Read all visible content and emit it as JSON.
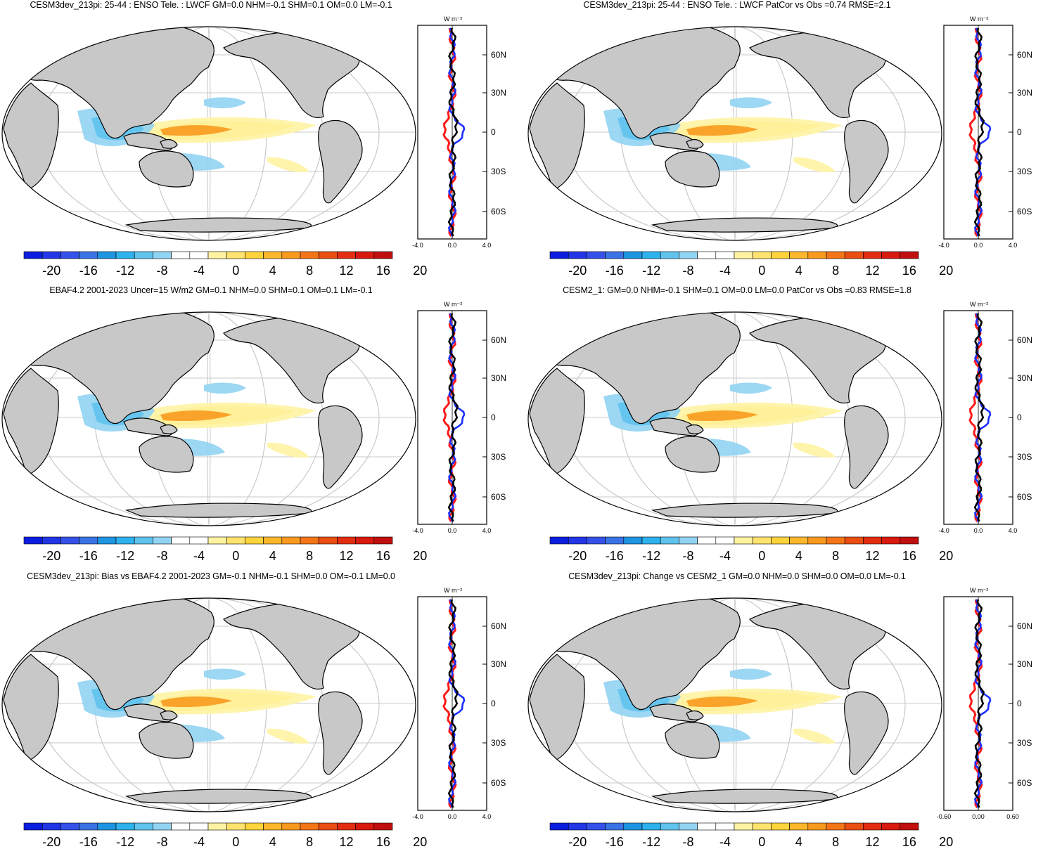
{
  "panels": [
    {
      "title": "CESM3dev_213pi: 25-44 : ENSO Tele. : LWCF GM=0.0 NHM=-0.1 SHM=0.1 OM=0.0 LM=-0.1",
      "zonal_xticks": [
        "-4.0",
        "0.0",
        "4.0"
      ]
    },
    {
      "title": "CESM3dev_213pi: 25-44 : ENSO Tele. : LWCF PatCor vs Obs =0.74 RMSE=2.1",
      "zonal_xticks": [
        "-4.0",
        "0.0",
        "4.0"
      ]
    },
    {
      "title": "EBAF4.2 2001-2023 Uncer=15 W/m2 GM=0.1 NHM=0.0 SHM=0.1 OM=0.1 LM=-0.1",
      "zonal_xticks": [
        "-4.0",
        "0.0",
        "4.0"
      ]
    },
    {
      "title": "CESM2_1: GM=0.0 NHM=-0.1 SHM=0.1 OM=0.0 LM=0.0 PatCor vs Obs =0.83 RMSE=1.8",
      "zonal_xticks": [
        "-4.0",
        "0.0",
        "4.0"
      ]
    },
    {
      "title": "CESM3dev_213pi: Bias vs EBAF4.2 2001-2023 GM=-0.1 NHM=-0.1 SHM=0.0 OM=-0.1 LM=0.0",
      "zonal_xticks": [
        "-4.0",
        "0.0",
        "4.0"
      ]
    },
    {
      "title": "CESM3dev_213pi: Change vs CESM2_1 GM=0.0 NHM=0.0 SHM=0.0 OM=0.0 LM=-0.1",
      "zonal_xticks": [
        "-0.60",
        "0.00",
        "0.60"
      ]
    }
  ],
  "zonal_unit": "W m⁻²",
  "zonal_lat_labels": [
    "60N",
    "30N",
    "0",
    "30S",
    "60S"
  ],
  "colorbar": {
    "labels": [
      "-20",
      "-16",
      "-12",
      "-8",
      "-4",
      "0",
      "4",
      "8",
      "12",
      "16",
      "20"
    ],
    "colors": [
      "#0b1ee0",
      "#2236e6",
      "#3551e9",
      "#3a73e6",
      "#1e95e2",
      "#2db2ee",
      "#5fc3ee",
      "#91d3f2",
      "#ffffff",
      "#ffffff",
      "#fff3a2",
      "#ffe36e",
      "#fed43c",
      "#fcb72c",
      "#f99a1e",
      "#f47518",
      "#ea4e12",
      "#e32d10",
      "#d8190e",
      "#c00f0e"
    ]
  },
  "colors": {
    "land": "#c8c8c8",
    "grid": "#c8c8c8",
    "obs": "#ff1a1a",
    "model": "#1a2eff",
    "mean": "#000000"
  }
}
